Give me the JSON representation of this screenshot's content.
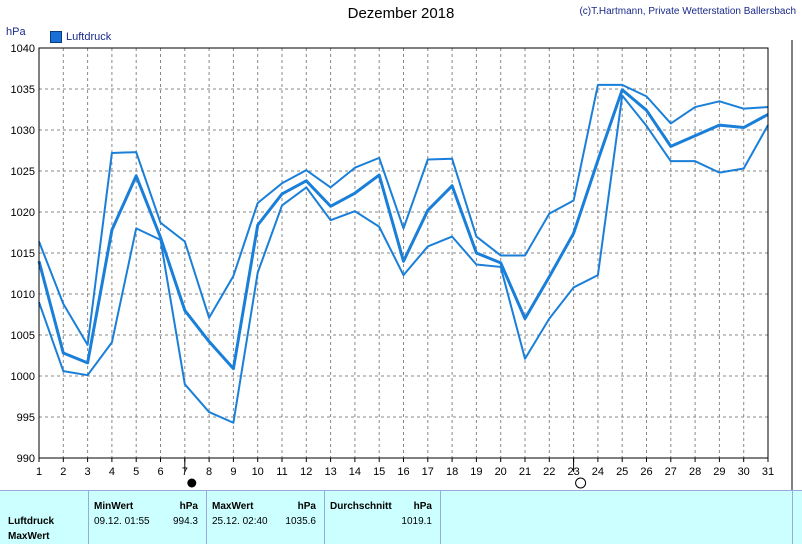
{
  "title": "Dezember 2018",
  "credit": "(c)T.Hartmann, Private Wetterstation Ballersbach",
  "unit_label": "hPa",
  "legend_label": "Luftdruck",
  "series_color": "#1a7fd9",
  "chart_data": {
    "type": "line",
    "title": "Dezember 2018",
    "ylabel": "hPa",
    "ylim": [
      990,
      1040
    ],
    "yticks": [
      990,
      995,
      1000,
      1005,
      1010,
      1015,
      1020,
      1025,
      1030,
      1035,
      1040
    ],
    "x": [
      1,
      2,
      3,
      4,
      5,
      6,
      7,
      8,
      9,
      10,
      11,
      12,
      13,
      14,
      15,
      16,
      17,
      18,
      19,
      20,
      21,
      22,
      23,
      24,
      25,
      26,
      27,
      28,
      29,
      30,
      31
    ],
    "grid": true,
    "legend": "top-left",
    "series": [
      {
        "name": "Luftdruck",
        "values": [
          1014.0,
          1002.8,
          1001.6,
          1017.8,
          1024.4,
          1016.9,
          1008.0,
          1004.2,
          1000.9,
          1018.4,
          1022.2,
          1023.8,
          1020.7,
          1022.3,
          1024.5,
          1014.0,
          1020.2,
          1023.2,
          1015.0,
          1013.8,
          1007.0,
          1012.1,
          1017.4,
          1026.3,
          1034.9,
          1032.4,
          1028.0,
          1029.3,
          1030.6,
          1030.3,
          1031.9
        ]
      },
      {
        "name": "",
        "values": [
          1016.4,
          1008.8,
          1003.8,
          1027.2,
          1027.3,
          1018.7,
          1016.4,
          1007.1,
          1012.2,
          1021.1,
          1023.5,
          1025.1,
          1023.0,
          1025.4,
          1026.6,
          1018.0,
          1026.4,
          1026.5,
          1017.0,
          1014.7,
          1014.7,
          1019.8,
          1021.4,
          1035.5,
          1035.5,
          1034.1,
          1030.8,
          1032.8,
          1033.5,
          1032.6,
          1032.8
        ]
      },
      {
        "name": "",
        "values": [
          1009.0,
          1000.6,
          1000.1,
          1004.1,
          1018.0,
          1016.6,
          999.0,
          995.6,
          994.3,
          1012.6,
          1020.8,
          1023.0,
          1019.0,
          1020.1,
          1018.2,
          1012.3,
          1015.8,
          1017.0,
          1013.6,
          1013.3,
          1002.1,
          1007.0,
          1010.8,
          1012.3,
          1034.2,
          1030.5,
          1026.2,
          1026.2,
          1024.8,
          1025.3,
          1030.6
        ]
      }
    ],
    "markers": [
      {
        "x": 7,
        "type": "new-moon"
      },
      {
        "x": 23,
        "type": "full-moon"
      }
    ]
  },
  "table": {
    "row_labels": [
      "Luftdruck",
      "MaxWert"
    ],
    "headers": {
      "min": "MinWert",
      "min_unit": "hPa",
      "max": "MaxWert",
      "max_unit": "hPa",
      "avg": "Durchschnitt",
      "avg_unit": "hPa"
    },
    "values": {
      "min_time": "09.12.  01:55",
      "min_val": "994.3",
      "max_time": "25.12.  02:40",
      "max_val": "1035.6",
      "avg_val": "1019.1"
    }
  }
}
